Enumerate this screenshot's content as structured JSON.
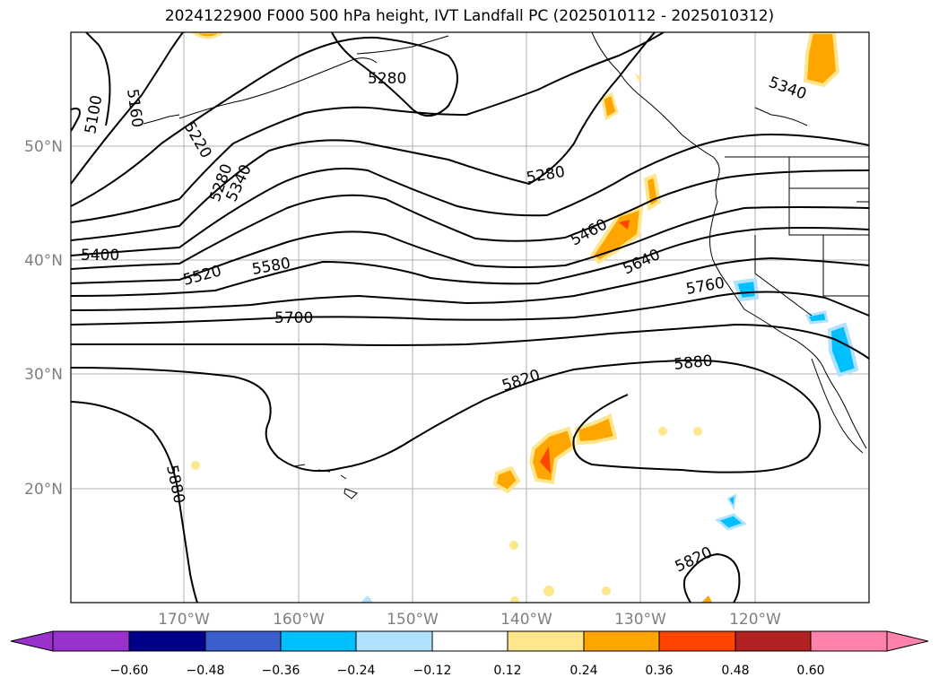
{
  "title": "2024122900 F000 500 hPa height, IVT Landfall PC (2025010112 - 2025010312)",
  "map": {
    "lat_ticks": [
      "50°N",
      "40°N",
      "30°N",
      "20°N"
    ],
    "lon_ticks": [
      "170°W",
      "160°W",
      "150°W",
      "140°W",
      "130°W",
      "120°W"
    ],
    "height_contour_labels": [
      "5100",
      "5160",
      "5220",
      "5280",
      "5340",
      "5280",
      "5280",
      "5340",
      "5400",
      "5460",
      "5520",
      "5580",
      "5640",
      "5700",
      "5760",
      "5820",
      "5880",
      "5880",
      "5820"
    ],
    "contour_color": "#000000",
    "gridline_color": "#b0b0b0"
  },
  "colorbar": {
    "ticks": [
      "−0.60",
      "−0.48",
      "−0.36",
      "−0.24",
      "−0.12",
      "0.12",
      "0.24",
      "0.36",
      "0.48",
      "0.60"
    ],
    "colors": [
      "#9932cc",
      "#00008b",
      "#3a5fcd",
      "#00bfff",
      "#b0e2ff",
      "#ffffff",
      "#ffe68c",
      "#ffa500",
      "#ff4500",
      "#b22222",
      "#ff82ab"
    ]
  }
}
